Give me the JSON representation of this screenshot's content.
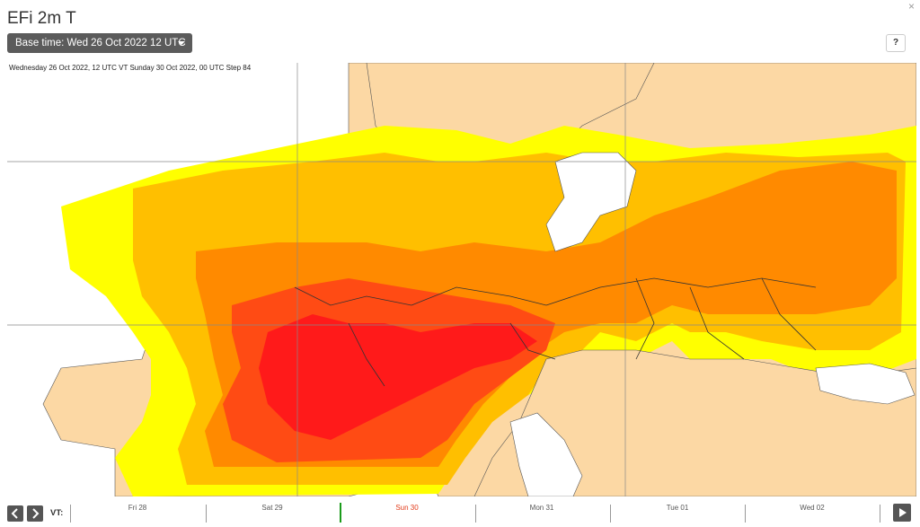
{
  "title": "EFi 2m T",
  "base_time": {
    "label": "Base time: Wed 26 Oct 2022 12 UTC",
    "selected_value": "Wed 26 Oct 2022 12 UTC"
  },
  "help_label": "?",
  "close_label": "×",
  "map": {
    "caption": "Wednesday 26 Oct 2022, 12 UTC VT Sunday 30 Oct 2022, 00 UTC Step 84",
    "colors": {
      "sea": "#ffffff",
      "land_low": "#fcd8a4",
      "yellow": "#ffff00",
      "light_orange": "#ffbf00",
      "orange": "#ff8a00",
      "red_orange": "#ff4b14",
      "red": "#ff1a1a",
      "borders": "#333333",
      "grid": "#888888"
    }
  },
  "timeline": {
    "vt_label": "VT:",
    "days": [
      "Fri 28",
      "Sat 29",
      "Sun 30",
      "Mon 31",
      "Tue 01",
      "Wed 02"
    ],
    "current_day": "Sun 30",
    "prev_icon": "chevron-left-icon",
    "next_icon": "chevron-right-icon",
    "play_icon": "play-icon"
  }
}
